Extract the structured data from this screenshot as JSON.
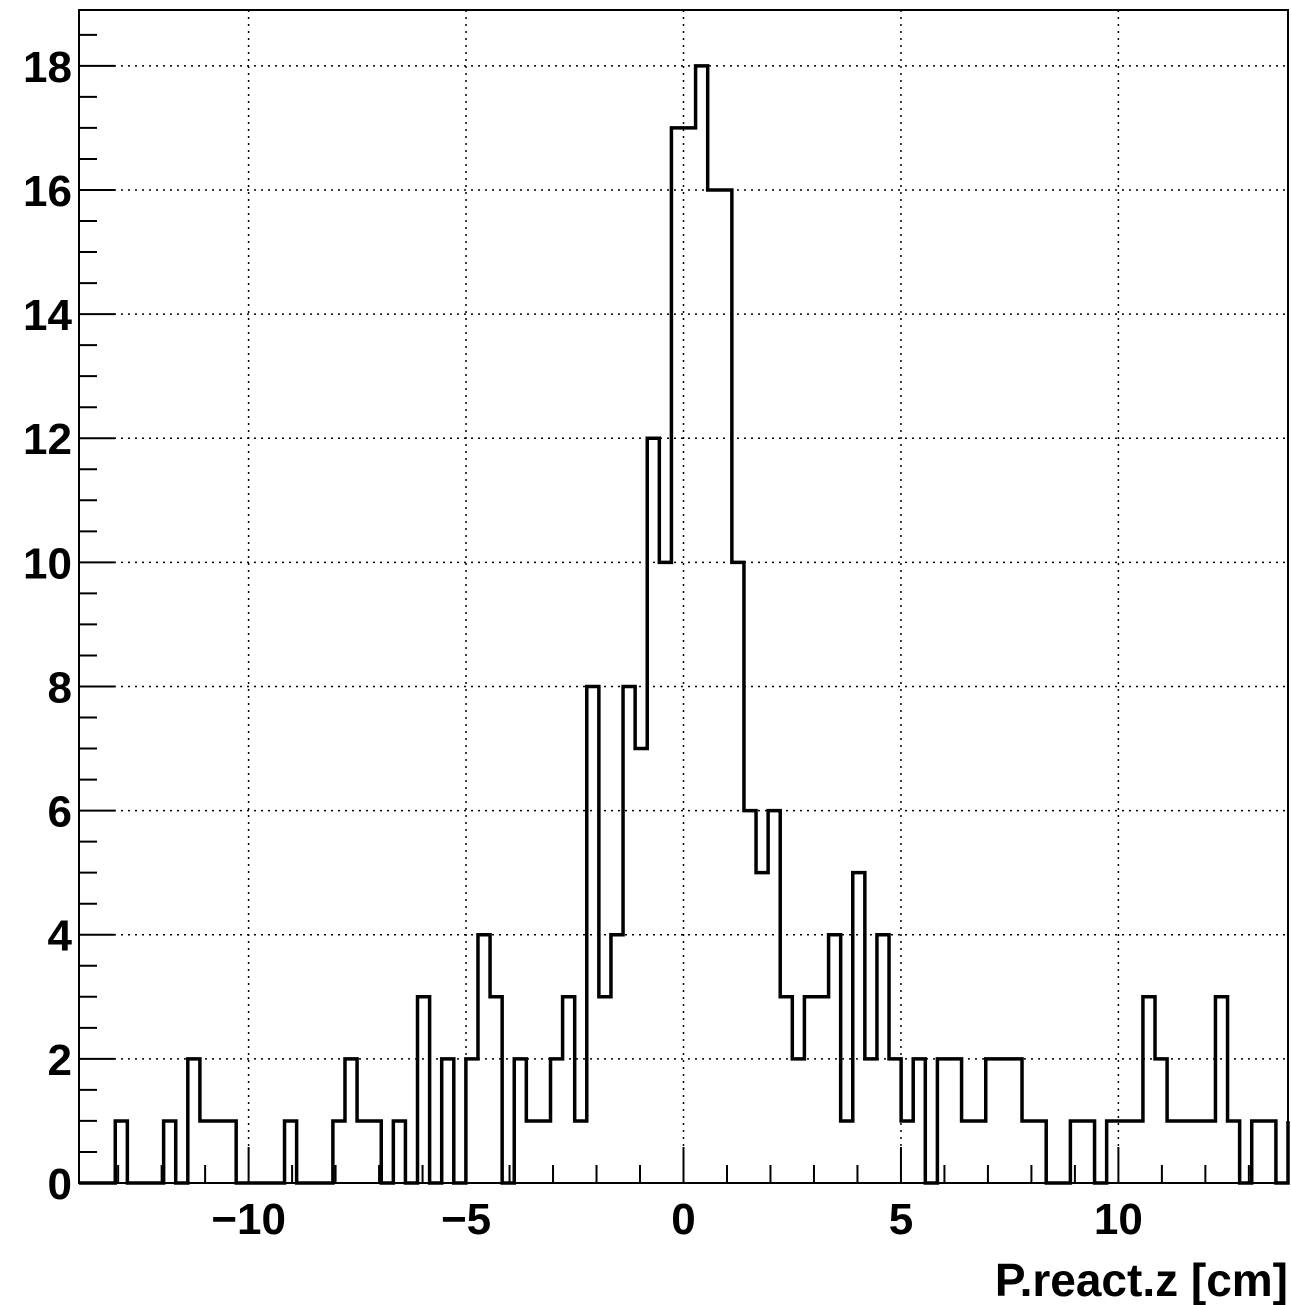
{
  "chart_data": {
    "type": "bar",
    "title": "",
    "xlabel": "P.react.z [cm]",
    "ylabel": "",
    "xlim": [
      -13.9,
      13.9
    ],
    "ylim": [
      0,
      18.9
    ],
    "grid": true,
    "x_ticks": [
      -10,
      -5,
      0,
      5,
      10
    ],
    "x_tick_labels": [
      "−10",
      "−5",
      "0",
      "5",
      "10"
    ],
    "y_ticks": [
      0,
      2,
      4,
      6,
      8,
      10,
      12,
      14,
      16,
      18
    ],
    "y_tick_labels": [
      "0",
      "2",
      "4",
      "6",
      "8",
      "10",
      "12",
      "14",
      "16",
      "18"
    ],
    "bin_width": 0.278,
    "bin_start": -13.9,
    "values": [
      0,
      0,
      0,
      1,
      0,
      0,
      0,
      1,
      0,
      2,
      1,
      1,
      1,
      0,
      0,
      0,
      0,
      1,
      0,
      0,
      0,
      1,
      2,
      1,
      1,
      0,
      1,
      0,
      3,
      0,
      2,
      0,
      2,
      4,
      3,
      0,
      2,
      1,
      1,
      2,
      3,
      1,
      8,
      3,
      4,
      8,
      7,
      12,
      10,
      17,
      17,
      18,
      16,
      16,
      10,
      6,
      5,
      6,
      3,
      2,
      3,
      3,
      4,
      1,
      5,
      2,
      4,
      2,
      1,
      2,
      0,
      2,
      2,
      1,
      1,
      2,
      2,
      2,
      1,
      1,
      0,
      0,
      1,
      1,
      0,
      1,
      1,
      1,
      3,
      2,
      1,
      1,
      1,
      1,
      3,
      1,
      0,
      1,
      1,
      0,
      1
    ]
  }
}
